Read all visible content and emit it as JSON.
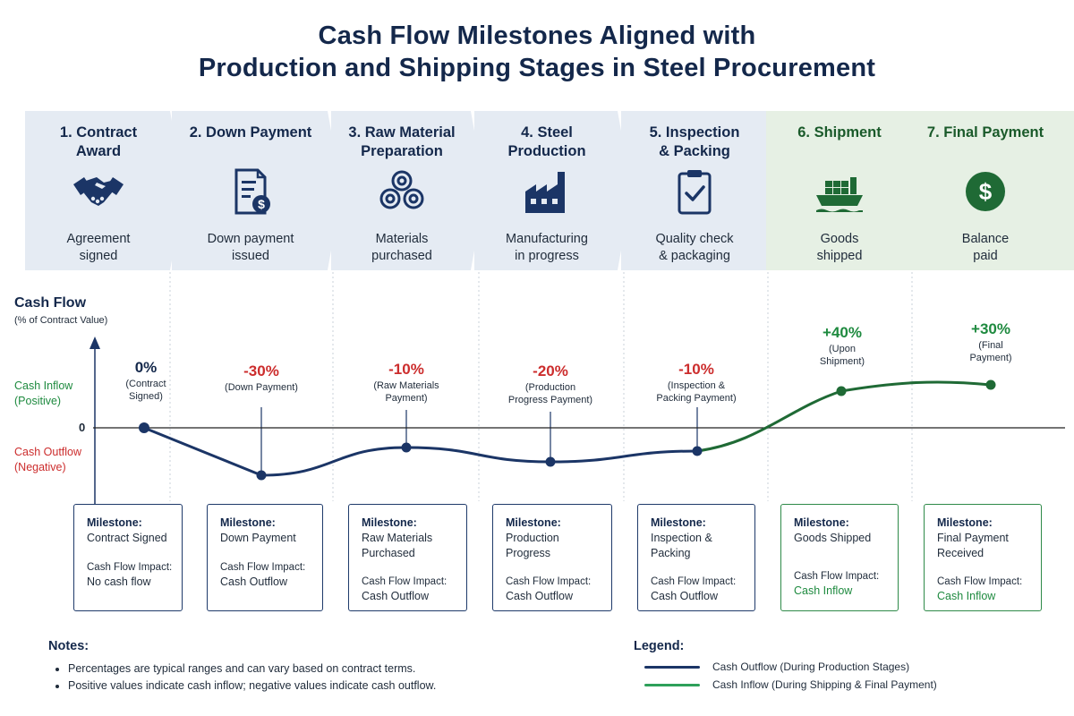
{
  "title": {
    "line1": "Cash Flow Milestones Aligned with",
    "line2": "Production and Shipping Stages in Steel Procurement"
  },
  "stages": [
    {
      "title1": "1. Contract",
      "title2": "Award",
      "icon": "handshake-icon",
      "desc1": "Agreement",
      "desc2": "signed"
    },
    {
      "title1": "2. Down Payment",
      "title2": "",
      "icon": "invoice-payment-icon",
      "desc1": "Down payment",
      "desc2": "issued"
    },
    {
      "title1": "3. Raw Material",
      "title2": "Preparation",
      "icon": "steel-coils-icon",
      "desc1": "Materials",
      "desc2": "purchased"
    },
    {
      "title1": "4. Steel",
      "title2": "Production",
      "icon": "factory-icon",
      "desc1": "Manufacturing",
      "desc2": "in progress"
    },
    {
      "title1": "5. Inspection",
      "title2": "& Packing",
      "icon": "clipboard-check-icon",
      "desc1": "Quality check",
      "desc2": "& packaging"
    },
    {
      "title1": "6. Shipment",
      "title2": "",
      "icon": "cargo-ship-icon",
      "desc1": "Goods",
      "desc2": "shipped"
    },
    {
      "title1": "7. Final Payment",
      "title2": "",
      "icon": "dollar-coin-icon",
      "desc1": "Balance",
      "desc2": "paid"
    }
  ],
  "chart": {
    "axis_title": "Cash Flow",
    "axis_subtitle": "(% of Contract Value)",
    "inflow_label_1": "Cash Inflow",
    "inflow_label_2": "(Positive)",
    "outflow_label_1": "Cash Outflow",
    "outflow_label_2": "(Negative)",
    "zero_label": "0",
    "colors": {
      "outflow": "#1b3566",
      "inflow": "#1f6a35",
      "zero_line": "#222222"
    }
  },
  "points": [
    {
      "value_label": "0%",
      "note1": "(Contract",
      "note2": "Signed)",
      "sign": "zero"
    },
    {
      "value_label": "-30%",
      "note1": "(Down Payment)",
      "note2": "",
      "sign": "neg"
    },
    {
      "value_label": "-10%",
      "note1": "(Raw Materials",
      "note2": "Payment)",
      "sign": "neg"
    },
    {
      "value_label": "-20%",
      "note1": "(Production",
      "note2": "Progress Payment)",
      "sign": "neg"
    },
    {
      "value_label": "-10%",
      "note1": "(Inspection &",
      "note2": "Packing Payment)",
      "sign": "neg"
    },
    {
      "value_label": "+40%",
      "note1": "(Upon",
      "note2": "Shipment)",
      "sign": "pos"
    },
    {
      "value_label": "+30%",
      "note1": "(Final",
      "note2": "Payment)",
      "sign": "pos"
    }
  ],
  "chart_data": {
    "type": "line",
    "categories": [
      "1. Contract Award",
      "2. Down Payment",
      "3. Raw Material Preparation",
      "4. Steel Production",
      "5. Inspection & Packing",
      "6. Shipment",
      "7. Final Payment"
    ],
    "values": [
      0,
      -30,
      -10,
      -20,
      -10,
      40,
      30
    ],
    "ylabel": "Cash Flow (% of Contract Value)",
    "series": [
      {
        "name": "Cash Outflow (During Production Stages)",
        "indices": [
          0,
          1,
          2,
          3,
          4
        ]
      },
      {
        "name": "Cash Inflow (During Shipping & Final Payment)",
        "indices": [
          5,
          6
        ]
      }
    ]
  },
  "milestones": [
    {
      "label": "Milestone:",
      "name1": "Contract Signed",
      "name2": "",
      "impact_label": "Cash Flow Impact:",
      "impact": "No cash flow",
      "type": "blue"
    },
    {
      "label": "Milestone:",
      "name1": "Down Payment",
      "name2": "",
      "impact_label": "Cash Flow Impact:",
      "impact": "Cash Outflow",
      "type": "blue"
    },
    {
      "label": "Milestone:",
      "name1": "Raw Materials",
      "name2": "Purchased",
      "impact_label": "Cash Flow Impact:",
      "impact": "Cash Outflow",
      "type": "blue"
    },
    {
      "label": "Milestone:",
      "name1": "Production",
      "name2": "Progress",
      "impact_label": "Cash Flow Impact:",
      "impact": "Cash Outflow",
      "type": "blue"
    },
    {
      "label": "Milestone:",
      "name1": "Inspection &",
      "name2": "Packing",
      "impact_label": "Cash Flow Impact:",
      "impact": "Cash Outflow",
      "type": "blue"
    },
    {
      "label": "Milestone:",
      "name1": "Goods Shipped",
      "name2": "",
      "impact_label": "Cash Flow Impact:",
      "impact": "Cash Inflow",
      "type": "green"
    },
    {
      "label": "Milestone:",
      "name1": "Final Payment",
      "name2": "Received",
      "impact_label": "Cash Flow Impact:",
      "impact": "Cash Inflow",
      "type": "green"
    }
  ],
  "notes": {
    "title": "Notes:",
    "items": [
      "Percentages are typical ranges and can vary based on contract terms.",
      "Positive values indicate cash inflow; negative values indicate cash outflow."
    ]
  },
  "legend": {
    "title": "Legend:",
    "outflow": "Cash Outflow (During Production Stages)",
    "inflow": "Cash Inflow (During Shipping & Final Payment)"
  }
}
